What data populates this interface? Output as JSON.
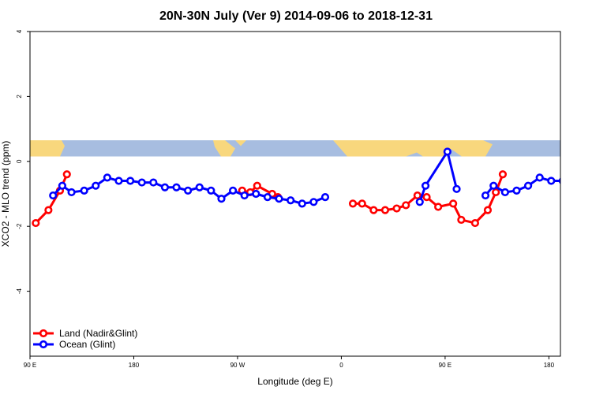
{
  "chart_data": {
    "type": "line",
    "title": "20N-30N July (Ver 9)   2014-09-06 to 2018-12-31",
    "xlabel": "Longitude (deg E)",
    "ylabel": "XCO2 - MLO trend (ppm)",
    "xlim": [
      90,
      550
    ],
    "ylim": [
      -6,
      4
    ],
    "x_ticks": [
      {
        "value": 90,
        "label": "90 E"
      },
      {
        "value": 180,
        "label": "180"
      },
      {
        "value": 270,
        "label": "90 W"
      },
      {
        "value": 360,
        "label": "0"
      },
      {
        "value": 450,
        "label": "90 E"
      },
      {
        "value": 540,
        "label": "180"
      }
    ],
    "y_ticks": [
      {
        "value": -4,
        "label": "-4"
      },
      {
        "value": -2,
        "label": "-2"
      },
      {
        "value": 0,
        "label": "0"
      },
      {
        "value": 2,
        "label": "2"
      },
      {
        "value": 4,
        "label": "4"
      }
    ],
    "grid": false,
    "legend_position": "bottom-left",
    "background_map_band": {
      "y_min": 0.15,
      "y_max": 0.65,
      "ocean_color": "#a7bde0",
      "land_color": "#f8d77d"
    },
    "series": [
      {
        "name": "Land (Nadir&Glint)",
        "color": "#ff0000",
        "segments": [
          [
            [
              95,
              -1.9
            ],
            [
              106,
              -1.5
            ],
            [
              116,
              -0.9
            ],
            [
              122,
              -0.4
            ]
          ],
          [
            [
              274,
              -0.9
            ],
            [
              281,
              -0.95
            ],
            [
              287,
              -0.75
            ],
            [
              300,
              -1.0
            ],
            [
              305,
              -1.1
            ]
          ],
          [
            [
              370,
              -1.3
            ],
            [
              378,
              -1.3
            ],
            [
              388,
              -1.5
            ],
            [
              398,
              -1.5
            ],
            [
              408,
              -1.45
            ],
            [
              416,
              -1.35
            ],
            [
              426,
              -1.05
            ],
            [
              434,
              -1.1
            ],
            [
              444,
              -1.4
            ],
            [
              457,
              -1.3
            ],
            [
              464,
              -1.8
            ],
            [
              476,
              -1.9
            ],
            [
              487,
              -1.5
            ],
            [
              494,
              -0.95
            ],
            [
              500,
              -0.4
            ]
          ]
        ]
      },
      {
        "name": "Ocean (Glint)",
        "color": "#0000ff",
        "segments": [
          [
            [
              110,
              -1.05
            ],
            [
              118,
              -0.75
            ],
            [
              126,
              -0.95
            ],
            [
              137,
              -0.9
            ],
            [
              147,
              -0.75
            ],
            [
              157,
              -0.5
            ],
            [
              167,
              -0.6
            ],
            [
              177,
              -0.6
            ],
            [
              187,
              -0.65
            ],
            [
              197,
              -0.65
            ],
            [
              207,
              -0.8
            ],
            [
              217,
              -0.8
            ],
            [
              227,
              -0.9
            ],
            [
              237,
              -0.8
            ],
            [
              247,
              -0.9
            ],
            [
              256,
              -1.15
            ],
            [
              266,
              -0.9
            ],
            [
              276,
              -1.05
            ],
            [
              286,
              -1.0
            ],
            [
              296,
              -1.1
            ],
            [
              306,
              -1.15
            ],
            [
              316,
              -1.2
            ],
            [
              326,
              -1.3
            ],
            [
              336,
              -1.25
            ],
            [
              346,
              -1.1
            ]
          ],
          [
            [
              428,
              -1.25
            ],
            [
              433,
              -0.75
            ],
            [
              452,
              0.3
            ],
            [
              460,
              -0.85
            ]
          ],
          [
            [
              485,
              -1.05
            ],
            [
              492,
              -0.75
            ],
            [
              502,
              -0.95
            ],
            [
              512,
              -0.9
            ],
            [
              522,
              -0.75
            ],
            [
              532,
              -0.5
            ],
            [
              542,
              -0.6
            ],
            [
              552,
              -0.6
            ]
          ]
        ]
      }
    ]
  }
}
